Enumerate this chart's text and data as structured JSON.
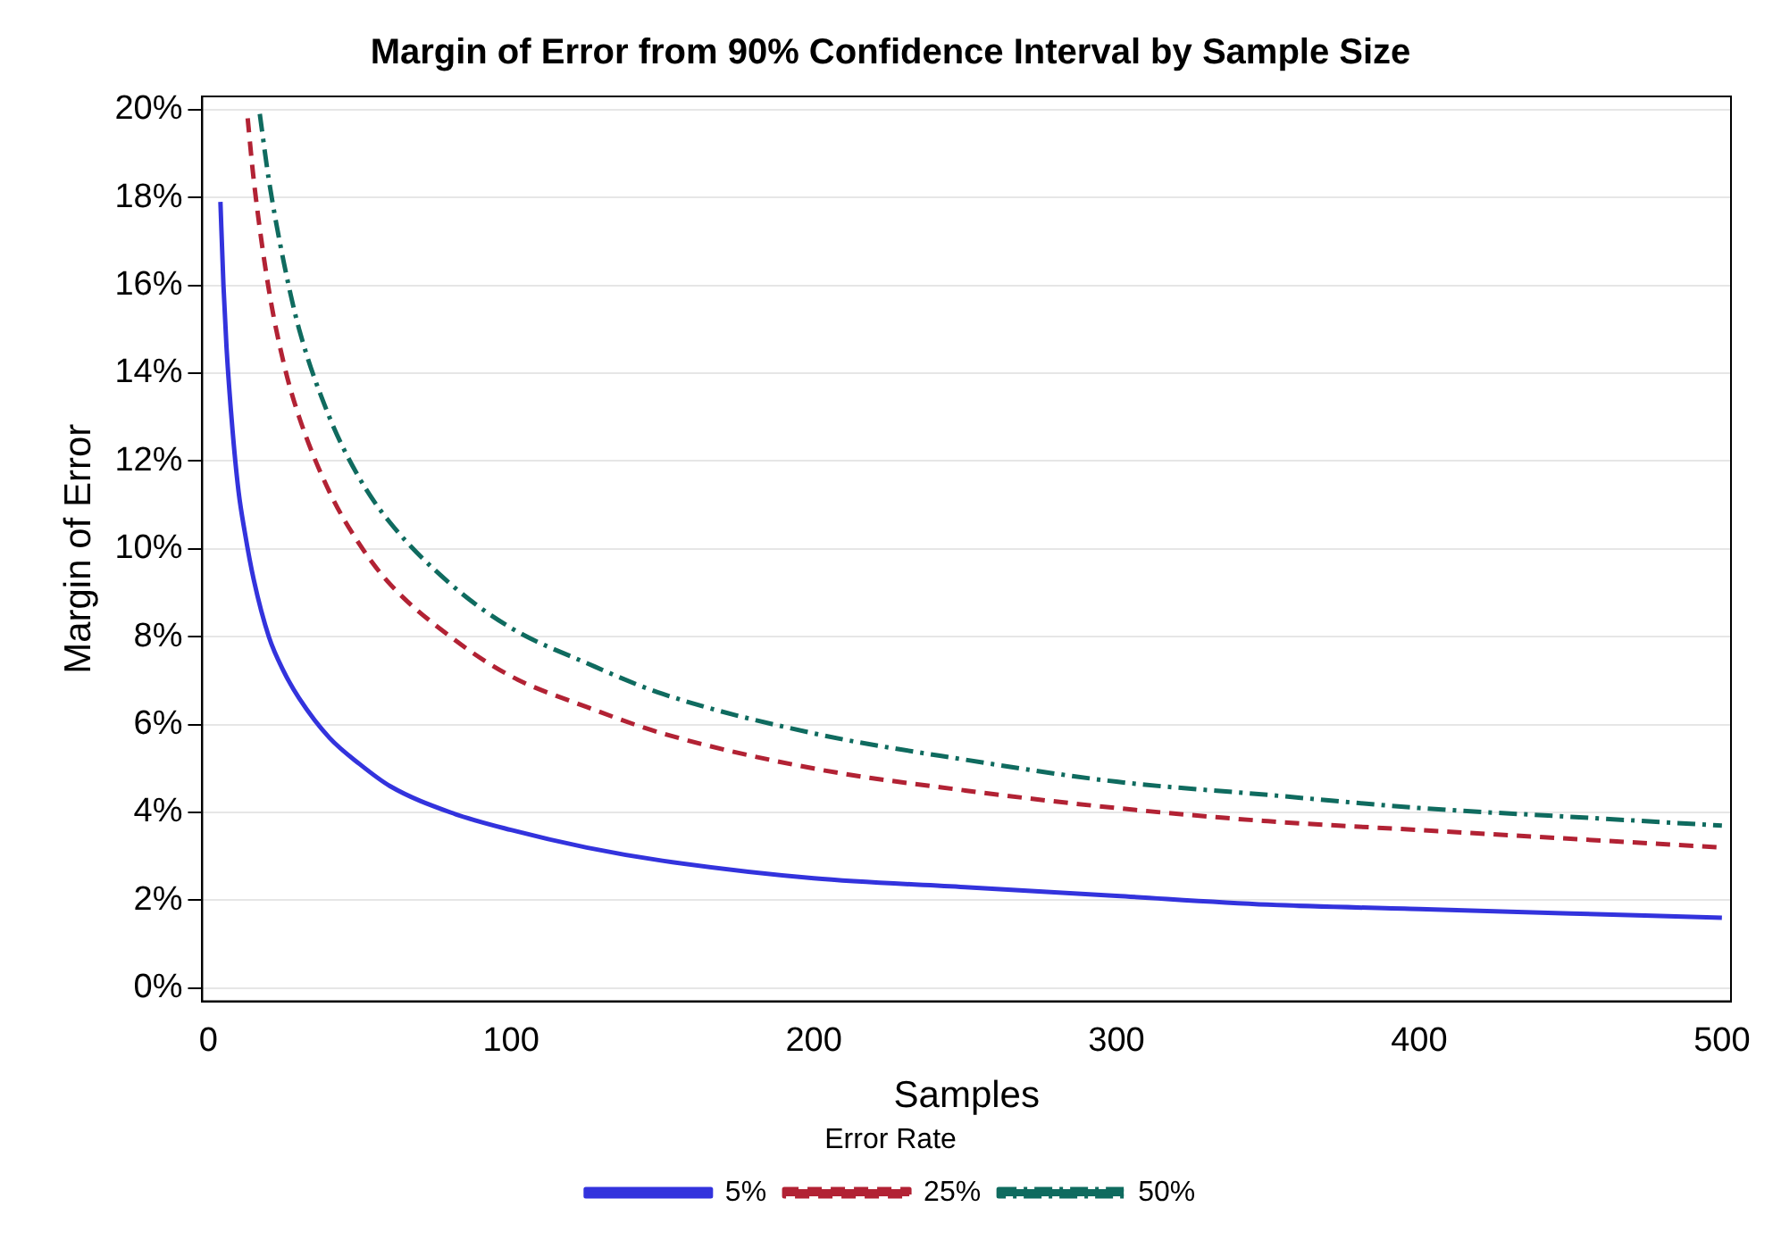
{
  "chart_data": {
    "type": "line",
    "title": "Margin of Error from 90% Confidence Interval by Sample Size",
    "xlabel": "Samples",
    "ylabel": "Margin of Error",
    "legend_title": "Error Rate",
    "legend": "bottom",
    "grid": "y",
    "marker": "none",
    "xlim": [
      -2,
      503
    ],
    "xticks": [
      0,
      100,
      200,
      300,
      400,
      500
    ],
    "ylim": [
      -0.3,
      20.3
    ],
    "yticks": [
      {
        "value": 0,
        "label": "0%"
      },
      {
        "value": 2,
        "label": "2%"
      },
      {
        "value": 4,
        "label": "4%"
      },
      {
        "value": 6,
        "label": "6%"
      },
      {
        "value": 8,
        "label": "8%"
      },
      {
        "value": 10,
        "label": "10%"
      },
      {
        "value": 12,
        "label": "12%"
      },
      {
        "value": 14,
        "label": "14%"
      },
      {
        "value": 16,
        "label": "16%"
      },
      {
        "value": 18,
        "label": "18%"
      },
      {
        "value": 20,
        "label": "20%"
      }
    ],
    "series": [
      {
        "name": "5%",
        "color": "#3333dd",
        "line_style": "solid",
        "x": [
          4,
          5,
          6,
          8,
          10,
          12,
          15,
          20,
          25,
          30,
          40,
          50,
          60,
          80,
          100,
          125,
          150,
          200,
          250,
          300,
          350,
          400,
          450,
          500
        ],
        "values": [
          17.9,
          16.0,
          14.6,
          12.7,
          11.3,
          10.4,
          9.3,
          8.0,
          7.2,
          6.6,
          5.7,
          5.1,
          4.6,
          4.0,
          3.6,
          3.2,
          2.9,
          2.5,
          2.3,
          2.1,
          1.9,
          1.8,
          1.7,
          1.6
        ]
      },
      {
        "name": "25%",
        "color": "#b22234",
        "line_style": "dashed",
        "x": [
          13,
          15,
          20,
          25,
          30,
          40,
          50,
          60,
          80,
          100,
          125,
          150,
          200,
          250,
          300,
          350,
          400,
          450,
          500
        ],
        "values": [
          19.8,
          18.4,
          15.9,
          14.2,
          13.0,
          11.3,
          10.1,
          9.2,
          8.0,
          7.1,
          6.4,
          5.8,
          5.0,
          4.5,
          4.1,
          3.8,
          3.6,
          3.4,
          3.2
        ]
      },
      {
        "name": "50%",
        "color": "#0f6b5f",
        "line_style": "dashdot",
        "x": [
          17,
          20,
          25,
          30,
          40,
          50,
          60,
          80,
          100,
          125,
          150,
          200,
          250,
          300,
          350,
          400,
          450,
          500
        ],
        "values": [
          19.9,
          18.4,
          16.5,
          15.0,
          13.0,
          11.6,
          10.6,
          9.2,
          8.2,
          7.4,
          6.7,
          5.8,
          5.2,
          4.7,
          4.4,
          4.1,
          3.9,
          3.7
        ]
      }
    ]
  }
}
